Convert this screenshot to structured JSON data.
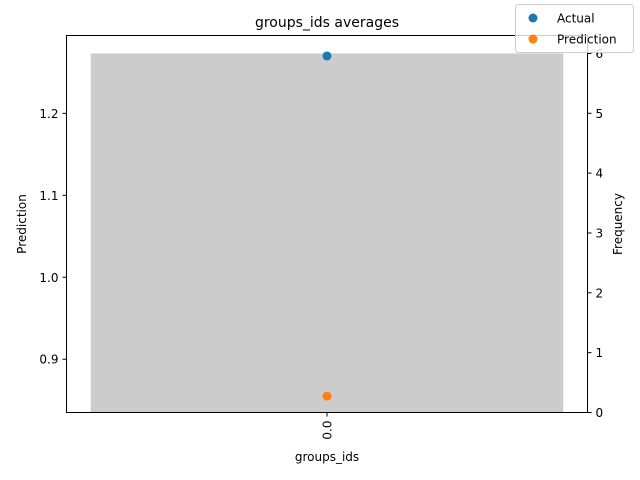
{
  "chart_data": {
    "type": "bar",
    "title": "groups_ids averages",
    "xlabel": "groups_ids",
    "ylabel_left": "Prediction",
    "ylabel_right": "Frequency",
    "categories": [
      "0.0"
    ],
    "frequency": [
      6
    ],
    "series": [
      {
        "name": "Actual",
        "type": "scatter",
        "values": [
          1.27
        ],
        "color": "#1f77b4"
      },
      {
        "name": "Prediction",
        "type": "scatter",
        "values": [
          0.855
        ],
        "color": "#ff7f0e"
      }
    ],
    "bar_color": "#cccccc",
    "ylim_left": [
      0.835,
      1.295
    ],
    "ylim_right": [
      0,
      6.3
    ],
    "yticks_left": [
      "0.9",
      "1.0",
      "1.1",
      "1.2"
    ],
    "yticks_right": [
      "0",
      "1",
      "2",
      "3",
      "4",
      "5",
      "6"
    ],
    "legend_position": "top-right",
    "grid": false
  }
}
